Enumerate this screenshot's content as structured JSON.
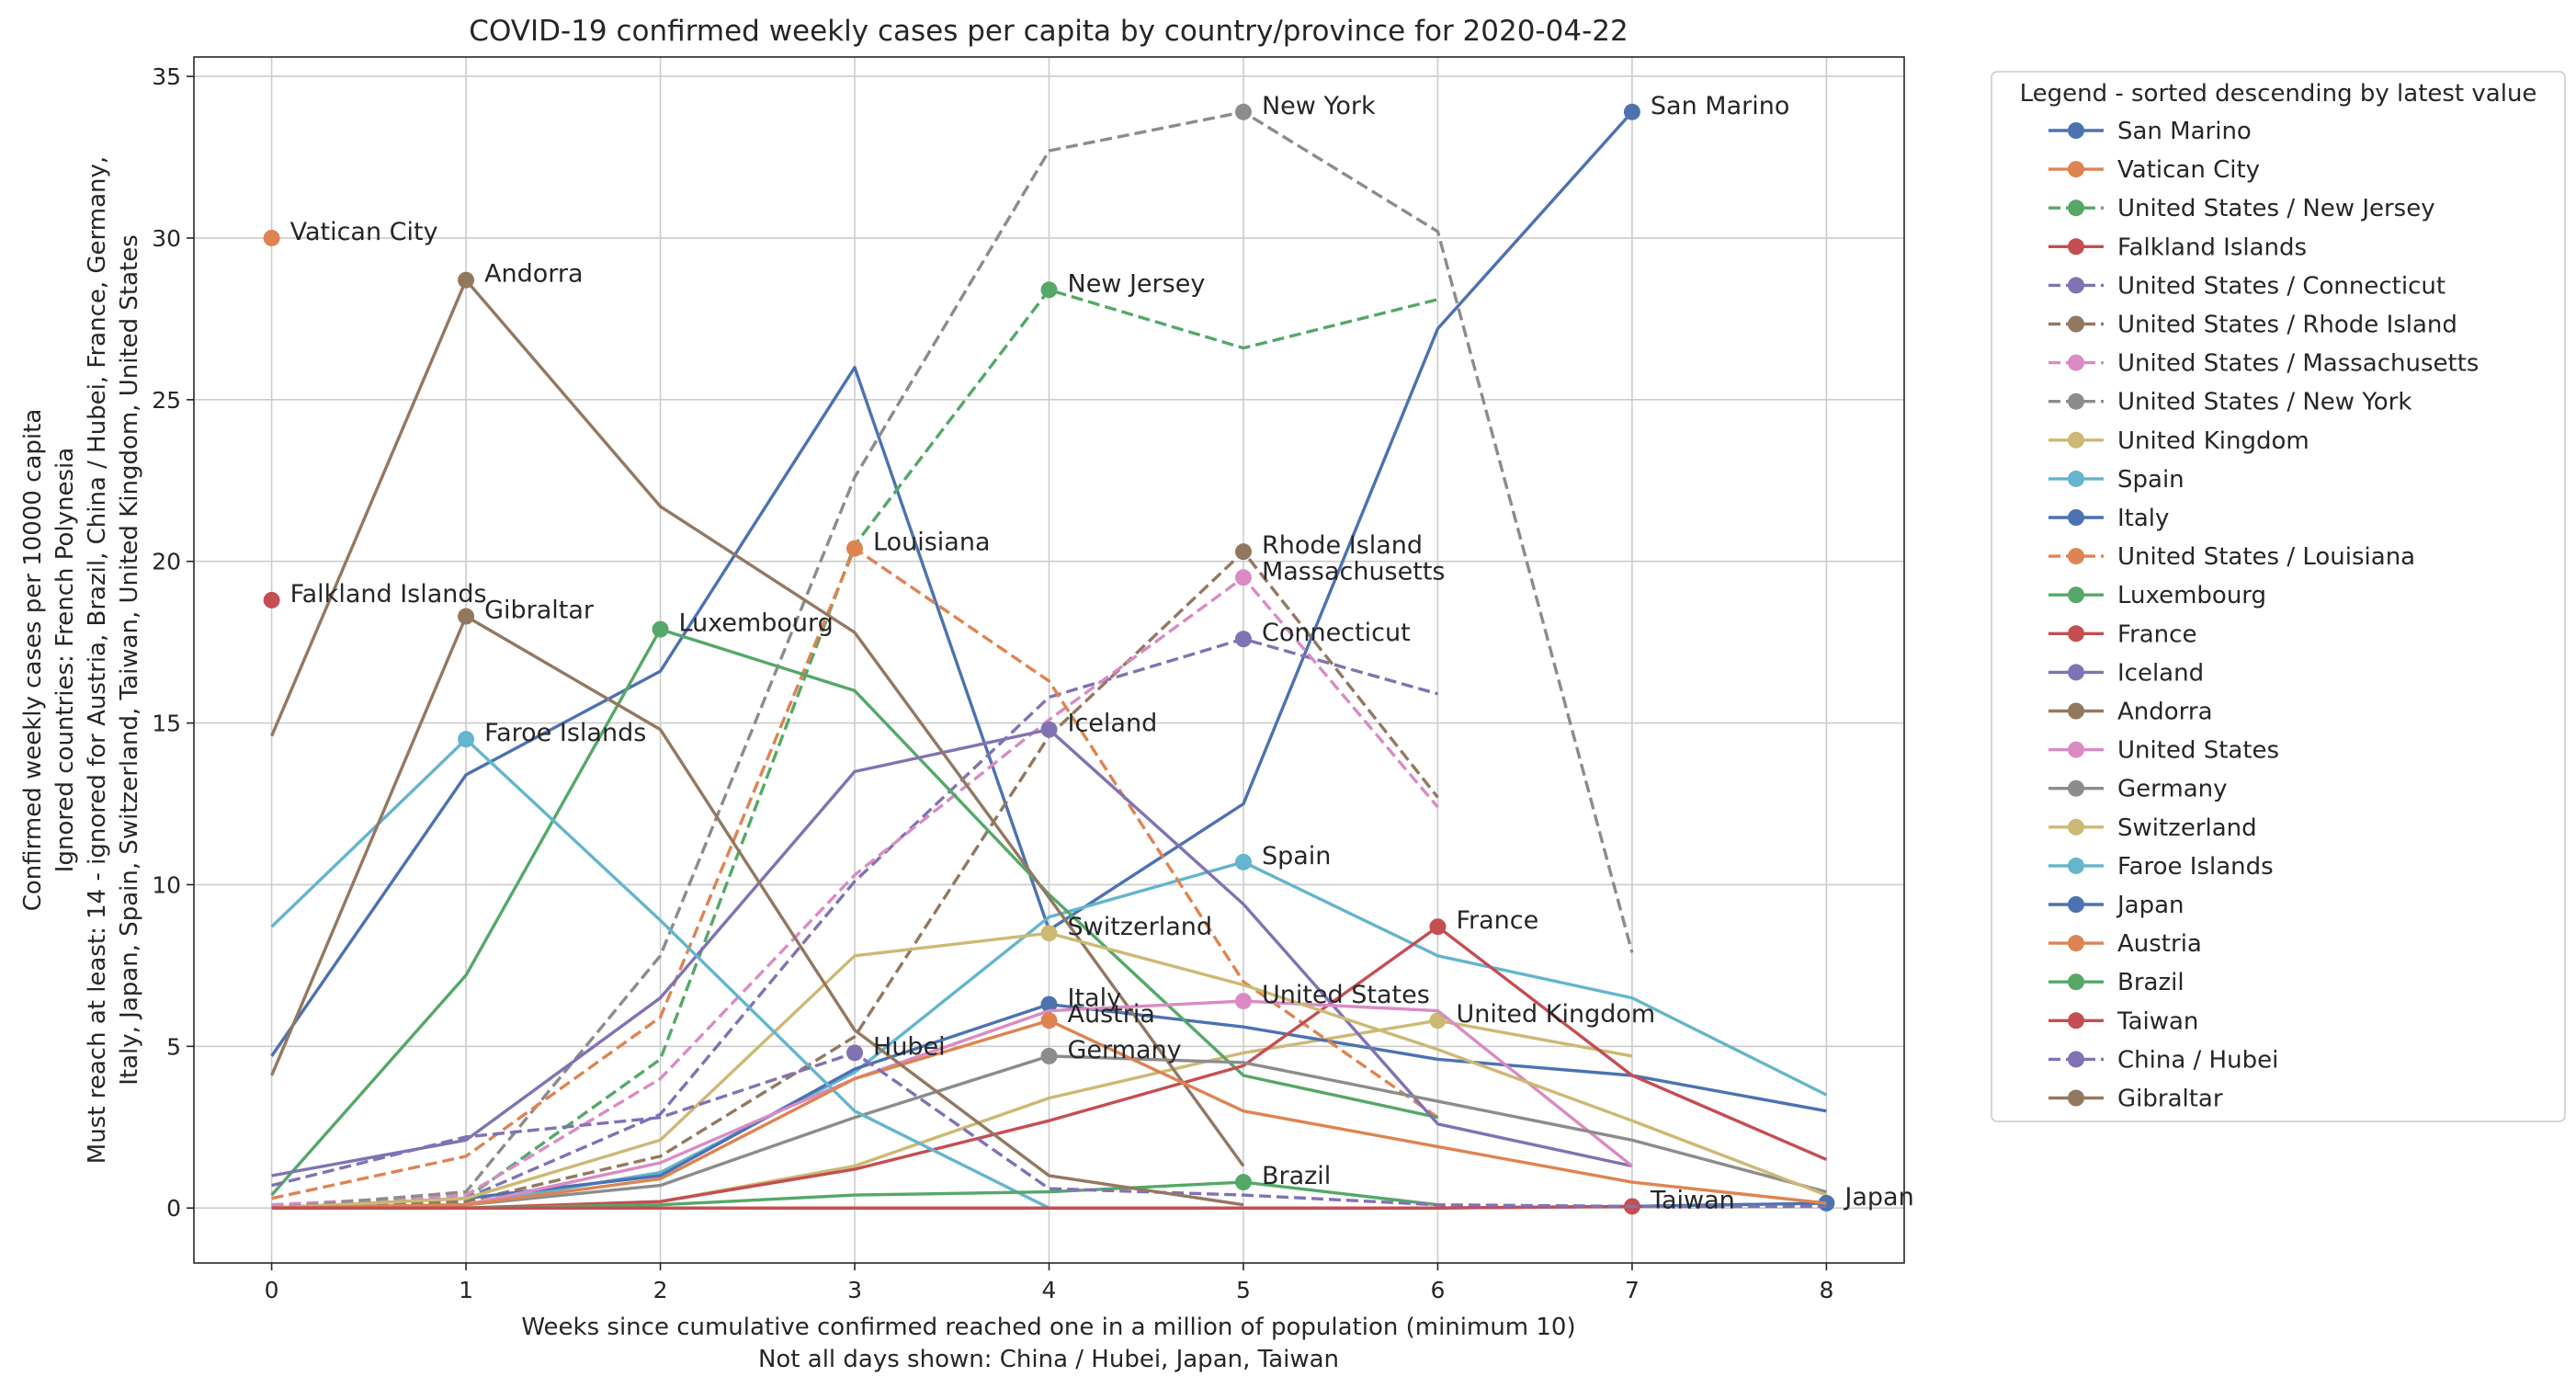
{
  "chart_data": {
    "type": "line",
    "title": "COVID-19 confirmed weekly cases per capita by country/province for 2020-04-22",
    "xlabel": [
      "Weeks since cumulative confirmed reached one in a million of population (minimum 10)",
      "Not all days shown: China / Hubei, Japan, Taiwan"
    ],
    "ylabel": [
      "Confirmed weekly cases per 10000 capita",
      "Ignored countries: French Polynesia",
      "Must reach at least: 14 - ignored for Austria, Brazil, China / Hubei, France, Germany,",
      "Italy, Japan, Spain, Switzerland, Taiwan, United Kingdom, United States"
    ],
    "xlim": [
      -0.4,
      8.4
    ],
    "ylim": [
      -1.7,
      35.6
    ],
    "xticks": [
      0,
      1,
      2,
      3,
      4,
      5,
      6,
      7,
      8
    ],
    "yticks": [
      0,
      5,
      10,
      15,
      20,
      25,
      30,
      35
    ],
    "grid": true,
    "legend_title": "Legend - sorted descending by latest value",
    "legend_position": "outside-right",
    "series": [
      {
        "name": "San Marino",
        "color": "#4c72b0",
        "dashed": false,
        "x": [
          0,
          1,
          2,
          3,
          4,
          5,
          6,
          7
        ],
        "values": [
          4.7,
          13.4,
          16.6,
          26.0,
          8.6,
          12.5,
          27.2,
          33.9
        ],
        "label": "San Marino",
        "label_x": 7,
        "label_y": 33.9
      },
      {
        "name": "Vatican City",
        "color": "#dd8452",
        "dashed": false,
        "x": [
          0
        ],
        "values": [
          30.0
        ],
        "label": "Vatican City",
        "label_x": 0,
        "label_y": 30.0
      },
      {
        "name": "United States / New Jersey",
        "color": "#55a868",
        "dashed": true,
        "x": [
          0,
          1,
          2,
          3,
          4,
          5,
          6
        ],
        "values": [
          0.1,
          0.3,
          4.6,
          20.5,
          28.4,
          26.6,
          28.1
        ],
        "label": "New Jersey",
        "label_x": 4,
        "label_y": 28.4
      },
      {
        "name": "Falkland Islands",
        "color": "#c44e52",
        "dashed": false,
        "x": [
          0
        ],
        "values": [
          18.8
        ],
        "label": "Falkland Islands",
        "label_x": 0,
        "label_y": 18.8
      },
      {
        "name": "United States / Connecticut",
        "color": "#8172b3",
        "dashed": true,
        "x": [
          0,
          1,
          2,
          3,
          4,
          5,
          6
        ],
        "values": [
          0.0,
          0.3,
          2.9,
          10.1,
          15.8,
          17.6,
          15.9
        ],
        "label": "Connecticut",
        "label_x": 5,
        "label_y": 17.6
      },
      {
        "name": "United States / Rhode Island",
        "color": "#937860",
        "dashed": true,
        "x": [
          0,
          1,
          2,
          3,
          4,
          5,
          6
        ],
        "values": [
          0.0,
          0.2,
          1.6,
          5.3,
          14.6,
          20.3,
          12.7
        ],
        "label": "Rhode Island",
        "label_x": 5,
        "label_y": 20.3
      },
      {
        "name": "United States / Massachusetts",
        "color": "#da8bc3",
        "dashed": true,
        "x": [
          0,
          1,
          2,
          3,
          4,
          5,
          6
        ],
        "values": [
          0.1,
          0.4,
          4.0,
          10.3,
          15.1,
          19.5,
          12.4
        ],
        "label": "Massachusetts",
        "label_x": 5,
        "label_y": 19.5
      },
      {
        "name": "United States / New York",
        "color": "#8c8c8c",
        "dashed": true,
        "x": [
          0,
          1,
          2,
          3,
          4,
          5,
          6,
          7
        ],
        "values": [
          0.0,
          0.5,
          7.8,
          22.6,
          32.7,
          33.9,
          30.2,
          7.9
        ],
        "label": "New York",
        "label_x": 5,
        "label_y": 33.9
      },
      {
        "name": "United Kingdom",
        "color": "#ccb974",
        "dashed": false,
        "x": [
          0,
          1,
          2,
          3,
          4,
          5,
          6,
          7
        ],
        "values": [
          0.0,
          0.0,
          0.2,
          1.3,
          3.4,
          4.8,
          5.8,
          4.7
        ],
        "label": "United Kingdom",
        "label_x": 6,
        "label_y": 5.8
      },
      {
        "name": "Spain",
        "color": "#64b5cd",
        "dashed": false,
        "x": [
          0,
          1,
          2,
          3,
          4,
          5,
          6,
          7,
          8
        ],
        "values": [
          0.0,
          0.1,
          1.1,
          4.2,
          9.0,
          10.7,
          7.8,
          6.5,
          3.5
        ],
        "label": "Spain",
        "label_x": 5,
        "label_y": 10.7
      },
      {
        "name": "Italy",
        "color": "#4c72b0",
        "dashed": false,
        "x": [
          0,
          1,
          2,
          3,
          4,
          5,
          6,
          7,
          8
        ],
        "values": [
          0.0,
          0.3,
          1.0,
          4.3,
          6.3,
          5.6,
          4.6,
          4.1,
          3.0
        ],
        "label": "Italy",
        "label_x": 4,
        "label_y": 6.3
      },
      {
        "name": "United States / Louisiana",
        "color": "#dd8452",
        "dashed": true,
        "x": [
          0,
          1,
          2,
          3,
          4,
          5,
          6
        ],
        "values": [
          0.3,
          1.6,
          5.9,
          20.4,
          16.3,
          7.0,
          2.8
        ],
        "label": "Louisiana",
        "label_x": 3,
        "label_y": 20.4
      },
      {
        "name": "Luxembourg",
        "color": "#55a868",
        "dashed": false,
        "x": [
          0,
          1,
          2,
          3,
          4,
          5,
          6
        ],
        "values": [
          0.4,
          7.2,
          17.9,
          16.0,
          9.7,
          4.1,
          2.8
        ],
        "label": "Luxembourg",
        "label_x": 2,
        "label_y": 17.9
      },
      {
        "name": "France",
        "color": "#c44e52",
        "dashed": false,
        "x": [
          0,
          1,
          2,
          3,
          4,
          5,
          6,
          7,
          8
        ],
        "values": [
          0.0,
          0.0,
          0.2,
          1.2,
          2.7,
          4.4,
          8.7,
          4.1,
          1.5
        ],
        "label": "France",
        "label_x": 6,
        "label_y": 8.7
      },
      {
        "name": "Iceland",
        "color": "#8172b3",
        "dashed": false,
        "x": [
          0,
          1,
          2,
          3,
          4,
          5,
          6,
          7
        ],
        "values": [
          1.0,
          2.1,
          6.5,
          13.5,
          14.8,
          9.4,
          2.6,
          1.3
        ],
        "label": "Iceland",
        "label_x": 4,
        "label_y": 14.8
      },
      {
        "name": "Andorra",
        "color": "#937860",
        "dashed": false,
        "x": [
          0,
          1,
          2,
          3,
          4,
          5
        ],
        "values": [
          14.6,
          28.7,
          21.7,
          17.8,
          9.6,
          1.3
        ],
        "label": "Andorra",
        "label_x": 1,
        "label_y": 28.7
      },
      {
        "name": "United States",
        "color": "#da8bc3",
        "dashed": false,
        "x": [
          0,
          1,
          2,
          3,
          4,
          5,
          6,
          7
        ],
        "values": [
          0.0,
          0.1,
          1.4,
          4.0,
          6.1,
          6.4,
          6.1,
          1.3
        ],
        "label": "United States",
        "label_x": 5,
        "label_y": 6.4
      },
      {
        "name": "Germany",
        "color": "#8c8c8c",
        "dashed": false,
        "x": [
          0,
          1,
          2,
          3,
          4,
          5,
          6,
          7,
          8
        ],
        "values": [
          0.0,
          0.1,
          0.7,
          2.8,
          4.7,
          4.5,
          3.3,
          2.1,
          0.5
        ],
        "label": "Germany",
        "label_x": 4,
        "label_y": 4.7
      },
      {
        "name": "Switzerland",
        "color": "#ccb974",
        "dashed": false,
        "x": [
          0,
          1,
          2,
          3,
          4,
          5,
          6,
          7,
          8
        ],
        "values": [
          0.0,
          0.3,
          2.1,
          7.8,
          8.5,
          6.9,
          4.9,
          2.7,
          0.4
        ],
        "label": "Switzerland",
        "label_x": 4,
        "label_y": 8.5
      },
      {
        "name": "Faroe Islands",
        "color": "#64b5cd",
        "dashed": false,
        "x": [
          0,
          1,
          2,
          3,
          4,
          5
        ],
        "values": [
          8.7,
          14.5,
          8.9,
          3.0,
          0.0,
          0.0
        ],
        "label": "Faroe Islands",
        "label_x": 1,
        "label_y": 14.5
      },
      {
        "name": "Japan",
        "color": "#4c72b0",
        "dashed": false,
        "x": [
          0,
          1,
          2,
          3,
          4,
          5,
          6,
          7,
          8
        ],
        "values": [
          0.0,
          0.0,
          0.0,
          0.0,
          0.0,
          0.0,
          0.0,
          0.05,
          0.15
        ],
        "label": "Japan",
        "label_x": 8,
        "label_y": 0.15
      },
      {
        "name": "Austria",
        "color": "#dd8452",
        "dashed": false,
        "x": [
          0,
          1,
          2,
          3,
          4,
          5,
          6,
          7,
          8
        ],
        "values": [
          0.0,
          0.1,
          0.9,
          4.0,
          5.8,
          3.0,
          1.9,
          0.8,
          0.15
        ],
        "label": "Austria",
        "label_x": 4,
        "label_y": 5.8
      },
      {
        "name": "Brazil",
        "color": "#55a868",
        "dashed": false,
        "x": [
          0,
          1,
          2,
          3,
          4,
          5,
          6
        ],
        "values": [
          0.0,
          0.0,
          0.1,
          0.4,
          0.5,
          0.8,
          0.1
        ],
        "label": "Brazil",
        "label_x": 5,
        "label_y": 0.8
      },
      {
        "name": "Taiwan",
        "color": "#c44e52",
        "dashed": false,
        "x": [
          0,
          1,
          2,
          3,
          4,
          5,
          6,
          7
        ],
        "values": [
          0.0,
          0.0,
          0.0,
          0.0,
          0.0,
          0.0,
          0.0,
          0.05
        ],
        "label": "Taiwan",
        "label_x": 7,
        "label_y": 0.05
      },
      {
        "name": "China / Hubei",
        "color": "#8172b3",
        "dashed": true,
        "x": [
          0,
          1,
          2,
          3,
          4,
          5,
          6,
          7,
          8
        ],
        "values": [
          0.7,
          2.2,
          2.8,
          4.8,
          0.6,
          0.4,
          0.1,
          0.05,
          0.05
        ],
        "label": "Hubei",
        "label_x": 3,
        "label_y": 4.8
      },
      {
        "name": "Gibraltar",
        "color": "#937860",
        "dashed": false,
        "x": [
          0,
          1,
          2,
          3,
          4,
          5
        ],
        "values": [
          4.1,
          18.3,
          14.8,
          5.5,
          1.0,
          0.1
        ],
        "label": "Gibraltar",
        "label_x": 1,
        "label_y": 18.3
      }
    ]
  }
}
